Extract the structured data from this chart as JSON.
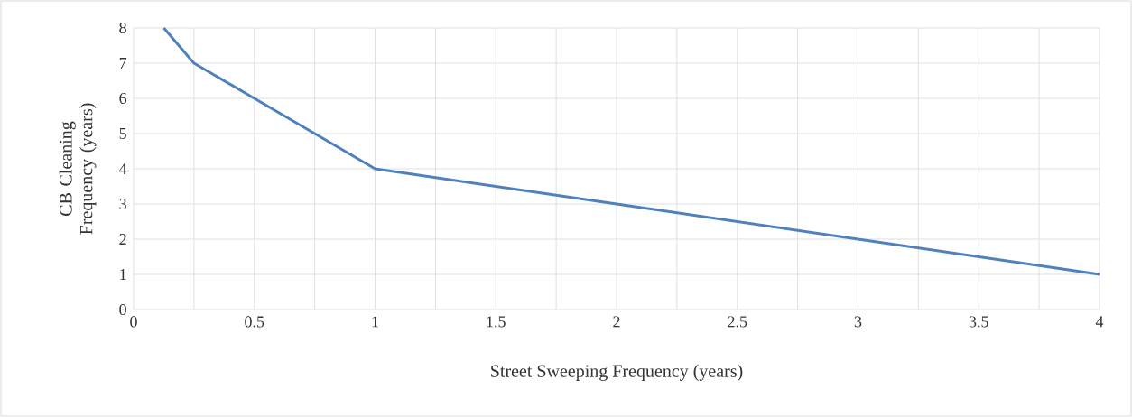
{
  "chart_data": {
    "type": "line",
    "xlabel": "Street Sweeping Frequency (years)",
    "ylabel": "CB Cleaning Frequency (years)",
    "x": [
      0.125,
      0.25,
      0.5,
      1,
      2,
      3,
      4
    ],
    "series": [
      {
        "color": "#4f81bd",
        "values": [
          8,
          7,
          6,
          4,
          3,
          2,
          1
        ]
      }
    ],
    "xlim": [
      0,
      4
    ],
    "ylim": [
      0,
      8
    ],
    "xticks": [
      0,
      0.5,
      1,
      1.5,
      2,
      2.5,
      3,
      3.5,
      4
    ],
    "yticks": [
      0,
      1,
      2,
      3,
      4,
      5,
      6,
      7,
      8
    ],
    "grid": true,
    "marker": "none",
    "line_style": "solid"
  }
}
